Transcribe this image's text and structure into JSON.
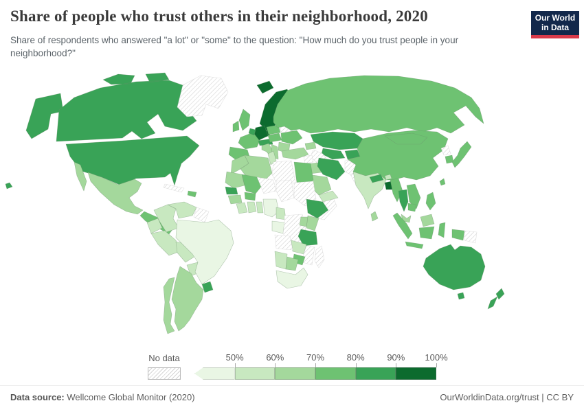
{
  "header": {
    "title": "Share of people who trust others in their neighborhood, 2020",
    "subtitle": "Share of respondents who answered \"a lot\" or \"some\" to the question: \"How much do you trust people in your neighborhood?\"",
    "logo": {
      "line1": "Our World",
      "line2": "in Data",
      "bg_color": "#12284b",
      "accent_color": "#d93a4a"
    }
  },
  "legend": {
    "no_data_label": "No data",
    "tick_labels": [
      "50%",
      "60%",
      "70%",
      "80%",
      "90%",
      "100%"
    ],
    "buckets": [
      {
        "label": "<50%",
        "color": "#e9f6e4"
      },
      {
        "label": "50-60%",
        "color": "#c8e8c0"
      },
      {
        "label": "60-70%",
        "color": "#a4d89c"
      },
      {
        "label": "70-80%",
        "color": "#6ec272"
      },
      {
        "label": "80-90%",
        "color": "#39a357"
      },
      {
        "label": "90-100%",
        "color": "#0c6b2e"
      }
    ],
    "no_data_pattern": "diagonal-hatch",
    "border_color": "#b9b9b9"
  },
  "footer": {
    "source_label": "Data source:",
    "source_text": " Wellcome Global Monitor (2020)",
    "link_text": "OurWorldinData.org/trust | CC BY"
  },
  "chart_data": {
    "type": "choropleth",
    "title": "Share of people who trust others in their neighborhood, 2020",
    "unit": "share of respondents answering \"a lot\" or \"some\"",
    "value_buckets": [
      "<50%",
      "50-60%",
      "60-70%",
      "70-80%",
      "80-90%",
      "90-100%",
      "No data"
    ],
    "legend_position": "bottom",
    "regions": {
      "united-states": "80-90%",
      "canada": "80-90%",
      "greenland": "No data",
      "mexico": "60-70%",
      "central-america": "70-80%",
      "cuba": "No data",
      "dominican-republic": "70-80%",
      "colombia": "50-60%",
      "venezuela": "50-60%",
      "guyana-suriname": "No data",
      "ecuador": "50-60%",
      "peru": "50-60%",
      "bolivia": "50-60%",
      "paraguay": "50-60%",
      "brazil": "<50%",
      "uruguay": "80-90%",
      "argentina": "60-70%",
      "chile": "60-70%",
      "iceland": "90-100%",
      "scandinavia": "90-100%",
      "finland": "90-100%",
      "denmark": "90-100%",
      "united-kingdom": "70-80%",
      "ireland": "70-80%",
      "france": "70-80%",
      "spain-portugal": "70-80%",
      "germany": "90-100%",
      "benelux": "80-90%",
      "switzerland-austria": "80-90%",
      "italy": "60-70%",
      "poland": "70-80%",
      "czechia-slovakia-hungary": "70-80%",
      "baltic-states": "80-90%",
      "belarus": "No data",
      "ukraine": "70-80%",
      "romania-bulgaria": "60-70%",
      "balkans-greece": "60-70%",
      "russia": "70-80%",
      "kazakhstan": "80-90%",
      "uzbekistan": "80-90%",
      "turkmenistan": "No data",
      "kyrgyzstan-tajikistan": "80-90%",
      "caucasus": "60-70%",
      "turkey": "60-70%",
      "syria": "No data",
      "iraq": "60-70%",
      "iran": "80-90%",
      "afghanistan": "No data",
      "pakistan": "No data",
      "saudi-arabia": "60-70%",
      "yemen-oman": "50-60%",
      "morocco": "60-70%",
      "algeria": "60-70%",
      "tunisia": "50-60%",
      "libya": "No data",
      "egypt": "70-80%",
      "mauritania": "60-70%",
      "mali": "70-80%",
      "niger": "No data",
      "chad": "No data",
      "sudan": "No data",
      "senegal": "80-90%",
      "guinea": "60-70%",
      "ivory-coast": "50-60%",
      "ghana": "50-60%",
      "burkina-faso": "70-80%",
      "togo-benin": "50-60%",
      "nigeria": "<50%",
      "cameroon": "50-60%",
      "gabon-congo": "<50%",
      "dr-congo": "No data",
      "ethiopia": "80-90%",
      "somalia": "No data",
      "kenya": "60-70%",
      "uganda": "60-70%",
      "tanzania": "80-90%",
      "zambia": "50-60%",
      "angola": "No data",
      "malawi-mozambique": "No data",
      "zimbabwe": "70-80%",
      "namibia": "50-60%",
      "botswana": "60-70%",
      "south-africa": "<50%",
      "madagascar": "No data",
      "india": "50-60%",
      "nepal": "80-90%",
      "bhutan": "50-60%",
      "bangladesh": "90-100%",
      "sri-lanka": "60-70%",
      "myanmar": "70-80%",
      "thailand": "80-90%",
      "laos-vietnam": "70-80%",
      "cambodia": "70-80%",
      "malaysia": "60-70%",
      "indonesia": "70-80%",
      "papua-new-guinea": "No data",
      "philippines": "70-80%",
      "china": "70-80%",
      "mongolia": "70-80%",
      "north-korea": "No data",
      "south-korea": "70-80%",
      "japan": "70-80%",
      "taiwan": "70-80%",
      "australia": "80-90%",
      "new-zealand": "80-90%"
    }
  }
}
